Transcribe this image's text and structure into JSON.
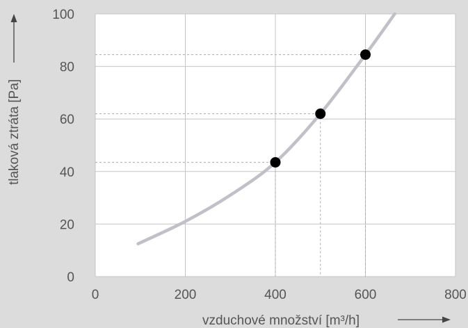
{
  "chart_data": {
    "type": "line",
    "xlabel": "vzduchové množství [m³/h]",
    "ylabel": "tlaková ztráta [Pa]",
    "xlim": [
      0,
      800
    ],
    "ylim": [
      0,
      100
    ],
    "x_ticks": [
      "0",
      "200",
      "400",
      "600",
      "800"
    ],
    "y_ticks": [
      "0",
      "20",
      "40",
      "60",
      "80",
      "100"
    ],
    "grid": true,
    "series": [
      {
        "type": "line",
        "color": "#c0c0c8",
        "x": [
          95,
          200,
          300,
          400,
          500,
          600,
          665
        ],
        "y": [
          12.5,
          21,
          31,
          43.5,
          62,
          84.5,
          100
        ]
      },
      {
        "type": "scatter",
        "color": "#000000",
        "x": [
          400,
          500,
          600
        ],
        "y": [
          43.5,
          62,
          84.5
        ]
      }
    ]
  }
}
